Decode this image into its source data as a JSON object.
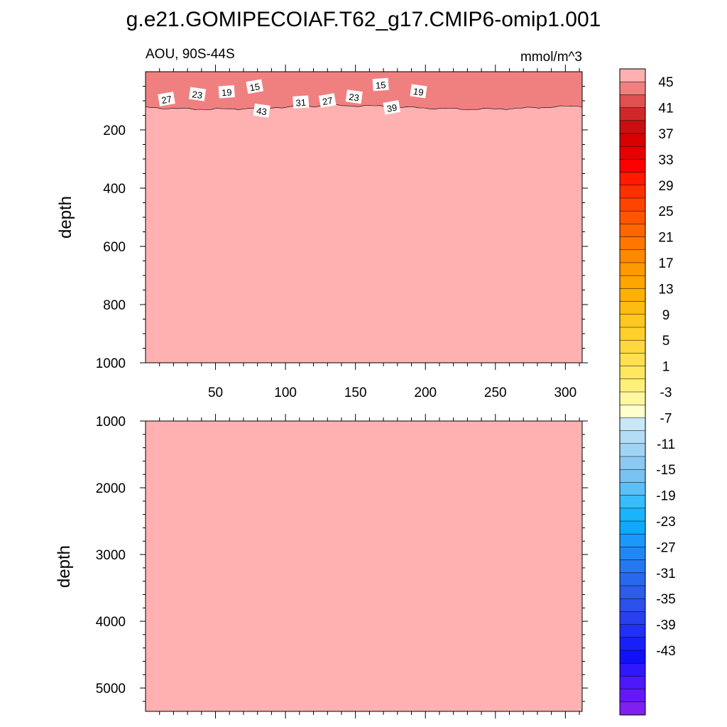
{
  "title": "g.e21.GOMIPECOIAF.T62_g17.CMIP6-omip1.001",
  "colors": {
    "fill_background": "#ffb0b0",
    "contour_line": "#000000"
  },
  "chart_data": [
    {
      "type": "heatmap",
      "subtitle_left": "AOU, 90S-44S",
      "subtitle_right": "mmol/m^3",
      "ylabel": "depth",
      "xlim": [
        0,
        312
      ],
      "ylim": [
        1000,
        0
      ],
      "x_ticks": [
        "50",
        "100",
        "150",
        "200",
        "250",
        "300"
      ],
      "y_ticks": [
        "200",
        "400",
        "600",
        "800",
        "1000"
      ],
      "y_tick_values": [
        200,
        400,
        600,
        800,
        1000
      ],
      "x_tick_values": [
        50,
        100,
        150,
        200,
        250,
        300
      ],
      "contour_labels": [
        {
          "text": "27",
          "x": 15,
          "y": 95
        },
        {
          "text": "23",
          "x": 37,
          "y": 78
        },
        {
          "text": "19",
          "x": 58,
          "y": 70
        },
        {
          "text": "15",
          "x": 78,
          "y": 52
        },
        {
          "text": "43",
          "x": 83,
          "y": 135
        },
        {
          "text": "31",
          "x": 111,
          "y": 105
        },
        {
          "text": "27",
          "x": 130,
          "y": 100
        },
        {
          "text": "23",
          "x": 149,
          "y": 87
        },
        {
          "text": "15",
          "x": 168,
          "y": 45
        },
        {
          "text": "39",
          "x": 176,
          "y": 124
        },
        {
          "text": "19",
          "x": 195,
          "y": 68
        }
      ],
      "notes": "Contours 1-45 confined to the top ~130 m; below that the field is >45 (uniform)."
    },
    {
      "type": "heatmap",
      "ylabel": "depth",
      "xlim": [
        0,
        312
      ],
      "ylim": [
        5350,
        1000
      ],
      "y_ticks": [
        "1000",
        "2000",
        "3000",
        "4000",
        "5000"
      ],
      "y_tick_values": [
        1000,
        2000,
        3000,
        4000,
        5000
      ],
      "x_tick_values": [
        50,
        100,
        150,
        200,
        250,
        300
      ],
      "notes": "Uniform >45 field throughout."
    }
  ],
  "colorbar": {
    "labels": [
      "45",
      "41",
      "37",
      "33",
      "29",
      "25",
      "21",
      "17",
      "13",
      "9",
      "5",
      "1",
      "-3",
      "-7",
      "-11",
      "-15",
      "-19",
      "-23",
      "-27",
      "-31",
      "-35",
      "-39",
      "-43"
    ],
    "label_values": [
      45,
      41,
      37,
      33,
      29,
      25,
      21,
      17,
      13,
      9,
      5,
      1,
      -3,
      -7,
      -11,
      -15,
      -19,
      -23,
      -27,
      -31,
      -35,
      -39,
      -43
    ],
    "colors_top_to_bottom": [
      "#ffb0b0",
      "#f08080",
      "#e05050",
      "#d02828",
      "#c81010",
      "#d80000",
      "#e80000",
      "#ff0000",
      "#ff1a00",
      "#ff3000",
      "#ff4400",
      "#ff5500",
      "#ff6600",
      "#ff7700",
      "#ff8800",
      "#ff9900",
      "#ffa500",
      "#ffb000",
      "#ffbc10",
      "#ffc820",
      "#ffd02a",
      "#ffd840",
      "#ffe050",
      "#ffe860",
      "#fff07a",
      "#fff8a0",
      "#ffffcc",
      "#c8e8f8",
      "#b4dcf4",
      "#a0d4f4",
      "#8ccaf4",
      "#78c2f4",
      "#5cc0f8",
      "#38bcfc",
      "#18b4fc",
      "#10a8fc",
      "#1c98fc",
      "#2088f4",
      "#2478f0",
      "#2868ec",
      "#2c5ce8",
      "#2c50ec",
      "#2840f0",
      "#2030f4",
      "#1820f8",
      "#1010fc",
      "#3018fc",
      "#4c18fc",
      "#6418f8",
      "#8020f0"
    ]
  }
}
